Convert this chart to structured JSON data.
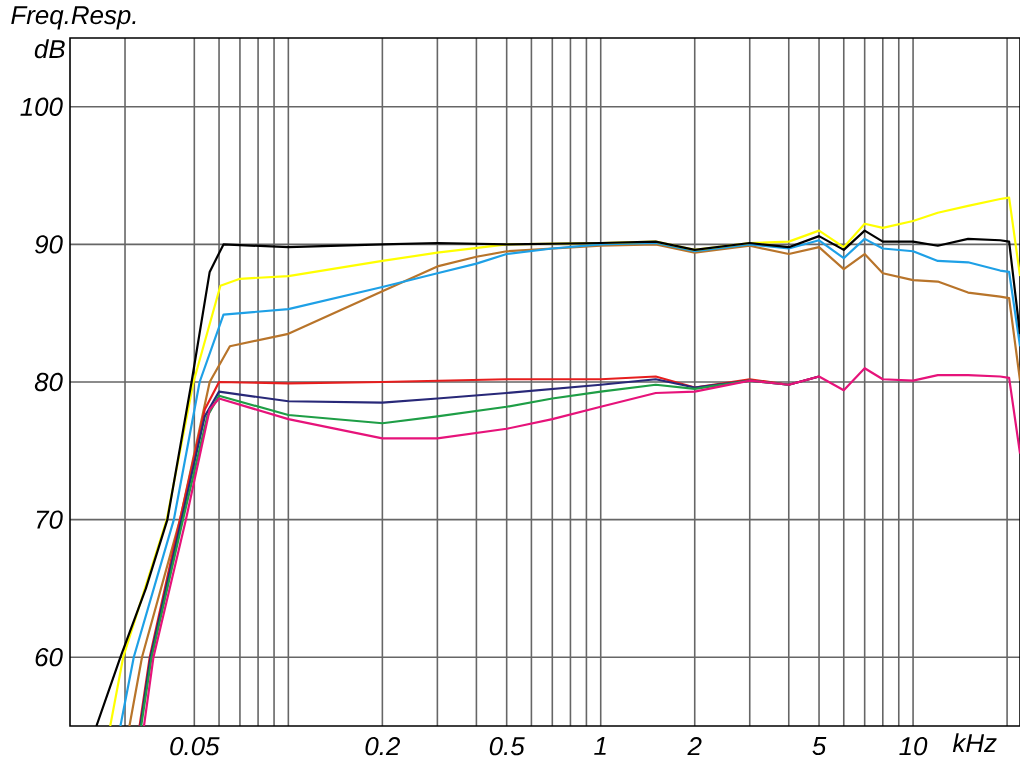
{
  "chart_data": {
    "type": "line",
    "title": "Freq.Resp.",
    "xlabel": "kHz",
    "ylabel": "dB",
    "log": "x",
    "grid": true,
    "xlim": [
      0.02,
      22
    ],
    "ylim": [
      55,
      105
    ],
    "xticks": [
      {
        "value": 0.03,
        "label": null
      },
      0.05,
      {
        "value": 0.06,
        "label": null
      },
      {
        "value": 0.07,
        "label": null
      },
      {
        "value": 0.08,
        "label": null
      },
      {
        "value": 0.09,
        "label": null
      },
      {
        "value": 0.1,
        "label": null
      },
      0.2,
      {
        "value": 0.3,
        "label": null
      },
      {
        "value": 0.4,
        "label": null
      },
      0.5,
      {
        "value": 0.6,
        "label": null
      },
      {
        "value": 0.7,
        "label": null
      },
      {
        "value": 0.8,
        "label": null
      },
      {
        "value": 0.9,
        "label": null
      },
      1,
      2,
      {
        "value": 3,
        "label": null
      },
      {
        "value": 4,
        "label": null
      },
      5,
      {
        "value": 6,
        "label": null
      },
      {
        "value": 7,
        "label": null
      },
      {
        "value": 8,
        "label": null
      },
      {
        "value": 9,
        "label": null
      },
      10,
      {
        "value": 20,
        "label": null
      }
    ],
    "yticks": [
      60,
      70,
      80,
      90,
      100
    ],
    "series": [
      {
        "color": "#b8742a",
        "x": [
          0.031,
          0.034,
          0.045,
          0.056,
          0.065,
          0.1,
          0.2,
          0.3,
          0.4,
          0.5,
          1,
          1.5,
          2,
          3,
          4,
          5,
          6,
          7,
          8,
          10,
          12,
          15,
          19,
          20.3,
          22
        ],
        "values": [
          55,
          60,
          70,
          80,
          82.6,
          83.5,
          86.6,
          88.4,
          89.1,
          89.5,
          89.9,
          90,
          89.4,
          89.9,
          89.3,
          89.8,
          88.2,
          89.3,
          87.9,
          87.4,
          87.3,
          86.5,
          86.2,
          86.1,
          80.1
        ]
      },
      {
        "color": "#1ea0e6",
        "x": [
          0.029,
          0.032,
          0.043,
          0.052,
          0.062,
          0.1,
          0.2,
          0.3,
          0.4,
          0.5,
          0.7,
          1,
          1.5,
          2,
          3,
          4,
          5,
          6,
          7,
          8,
          10,
          12,
          15,
          19,
          20.3,
          22
        ],
        "values": [
          55,
          60,
          70,
          80,
          84.9,
          85.3,
          86.9,
          87.9,
          88.6,
          89.3,
          89.7,
          90,
          90.1,
          89.5,
          90,
          89.7,
          90.3,
          89,
          90.4,
          89.7,
          89.5,
          88.8,
          88.7,
          88.1,
          88,
          82.6
        ]
      },
      {
        "color": "#ffff00",
        "x": [
          0.0269,
          0.0296,
          0.0408,
          0.0497,
          0.0606,
          0.07,
          0.1,
          0.2,
          0.3,
          0.5,
          1,
          1.5,
          2,
          3,
          4,
          5,
          6,
          7,
          8,
          10,
          12,
          15,
          19,
          20.3,
          22
        ],
        "values": [
          55,
          60,
          70,
          80,
          87,
          87.5,
          87.7,
          88.8,
          89.4,
          90,
          90.1,
          90.2,
          89.6,
          90.1,
          90.2,
          91,
          89.8,
          91.5,
          91.2,
          91.7,
          92.3,
          92.8,
          93.3,
          93.4,
          87.7
        ]
      },
      {
        "color": "#000000",
        "x": [
          0.0243,
          0.029,
          0.035,
          0.041,
          0.049,
          0.056,
          0.062,
          0.1,
          0.2,
          0.3,
          0.5,
          1,
          1.5,
          2,
          3,
          4,
          5,
          6,
          7,
          8,
          10,
          12,
          15,
          19,
          20.3,
          22
        ],
        "values": [
          55,
          60,
          65,
          70,
          80,
          88,
          90,
          89.8,
          90,
          90.1,
          90,
          90.1,
          90.2,
          89.6,
          90.1,
          89.8,
          90.6,
          89.6,
          91,
          90.2,
          90.2,
          89.9,
          90.4,
          90.3,
          90.2,
          83.5
        ]
      },
      {
        "color": "#e61e1e",
        "x": [
          0.0334,
          0.036,
          0.045,
          0.054,
          0.06,
          0.1,
          0.2,
          0.5,
          1,
          1.5,
          2,
          3,
          4,
          5
        ],
        "values": [
          55,
          60,
          70,
          78,
          80,
          79.9,
          80,
          80.2,
          80.2,
          80.4,
          79.6,
          80.2,
          79.8,
          80.4
        ]
      },
      {
        "color": "#282878",
        "x": [
          0.0336,
          0.0362,
          0.0455,
          0.054,
          0.06,
          0.1,
          0.2,
          0.3,
          0.5,
          1,
          1.5,
          2,
          3,
          4,
          5
        ],
        "values": [
          55,
          60,
          70,
          77.5,
          79.3,
          78.6,
          78.5,
          78.8,
          79.2,
          79.8,
          80.2,
          79.6,
          80.1,
          79.8,
          80.4
        ]
      },
      {
        "color": "#1e9e46",
        "x": [
          0.0338,
          0.0365,
          0.046,
          0.055,
          0.06,
          0.1,
          0.2,
          0.3,
          0.5,
          0.7,
          1,
          1.5,
          2,
          3,
          4
        ],
        "values": [
          55,
          60,
          70,
          77.5,
          79,
          77.6,
          77,
          77.5,
          78.2,
          78.8,
          79.3,
          79.8,
          79.5,
          80.1,
          79.8
        ]
      },
      {
        "color": "#e6137a",
        "x": [
          0.0345,
          0.037,
          0.047,
          0.056,
          0.06,
          0.1,
          0.2,
          0.3,
          0.5,
          0.7,
          1,
          1.5,
          2,
          3,
          4,
          5,
          6,
          7,
          8,
          10,
          12,
          15,
          19,
          20.3,
          22
        ],
        "values": [
          55,
          60,
          70,
          78,
          78.8,
          77.3,
          75.9,
          75.9,
          76.6,
          77.3,
          78.2,
          79.2,
          79.3,
          80.1,
          79.8,
          80.4,
          79.4,
          81,
          80.2,
          80.1,
          80.5,
          80.5,
          80.4,
          80.3,
          74.8
        ]
      }
    ]
  }
}
